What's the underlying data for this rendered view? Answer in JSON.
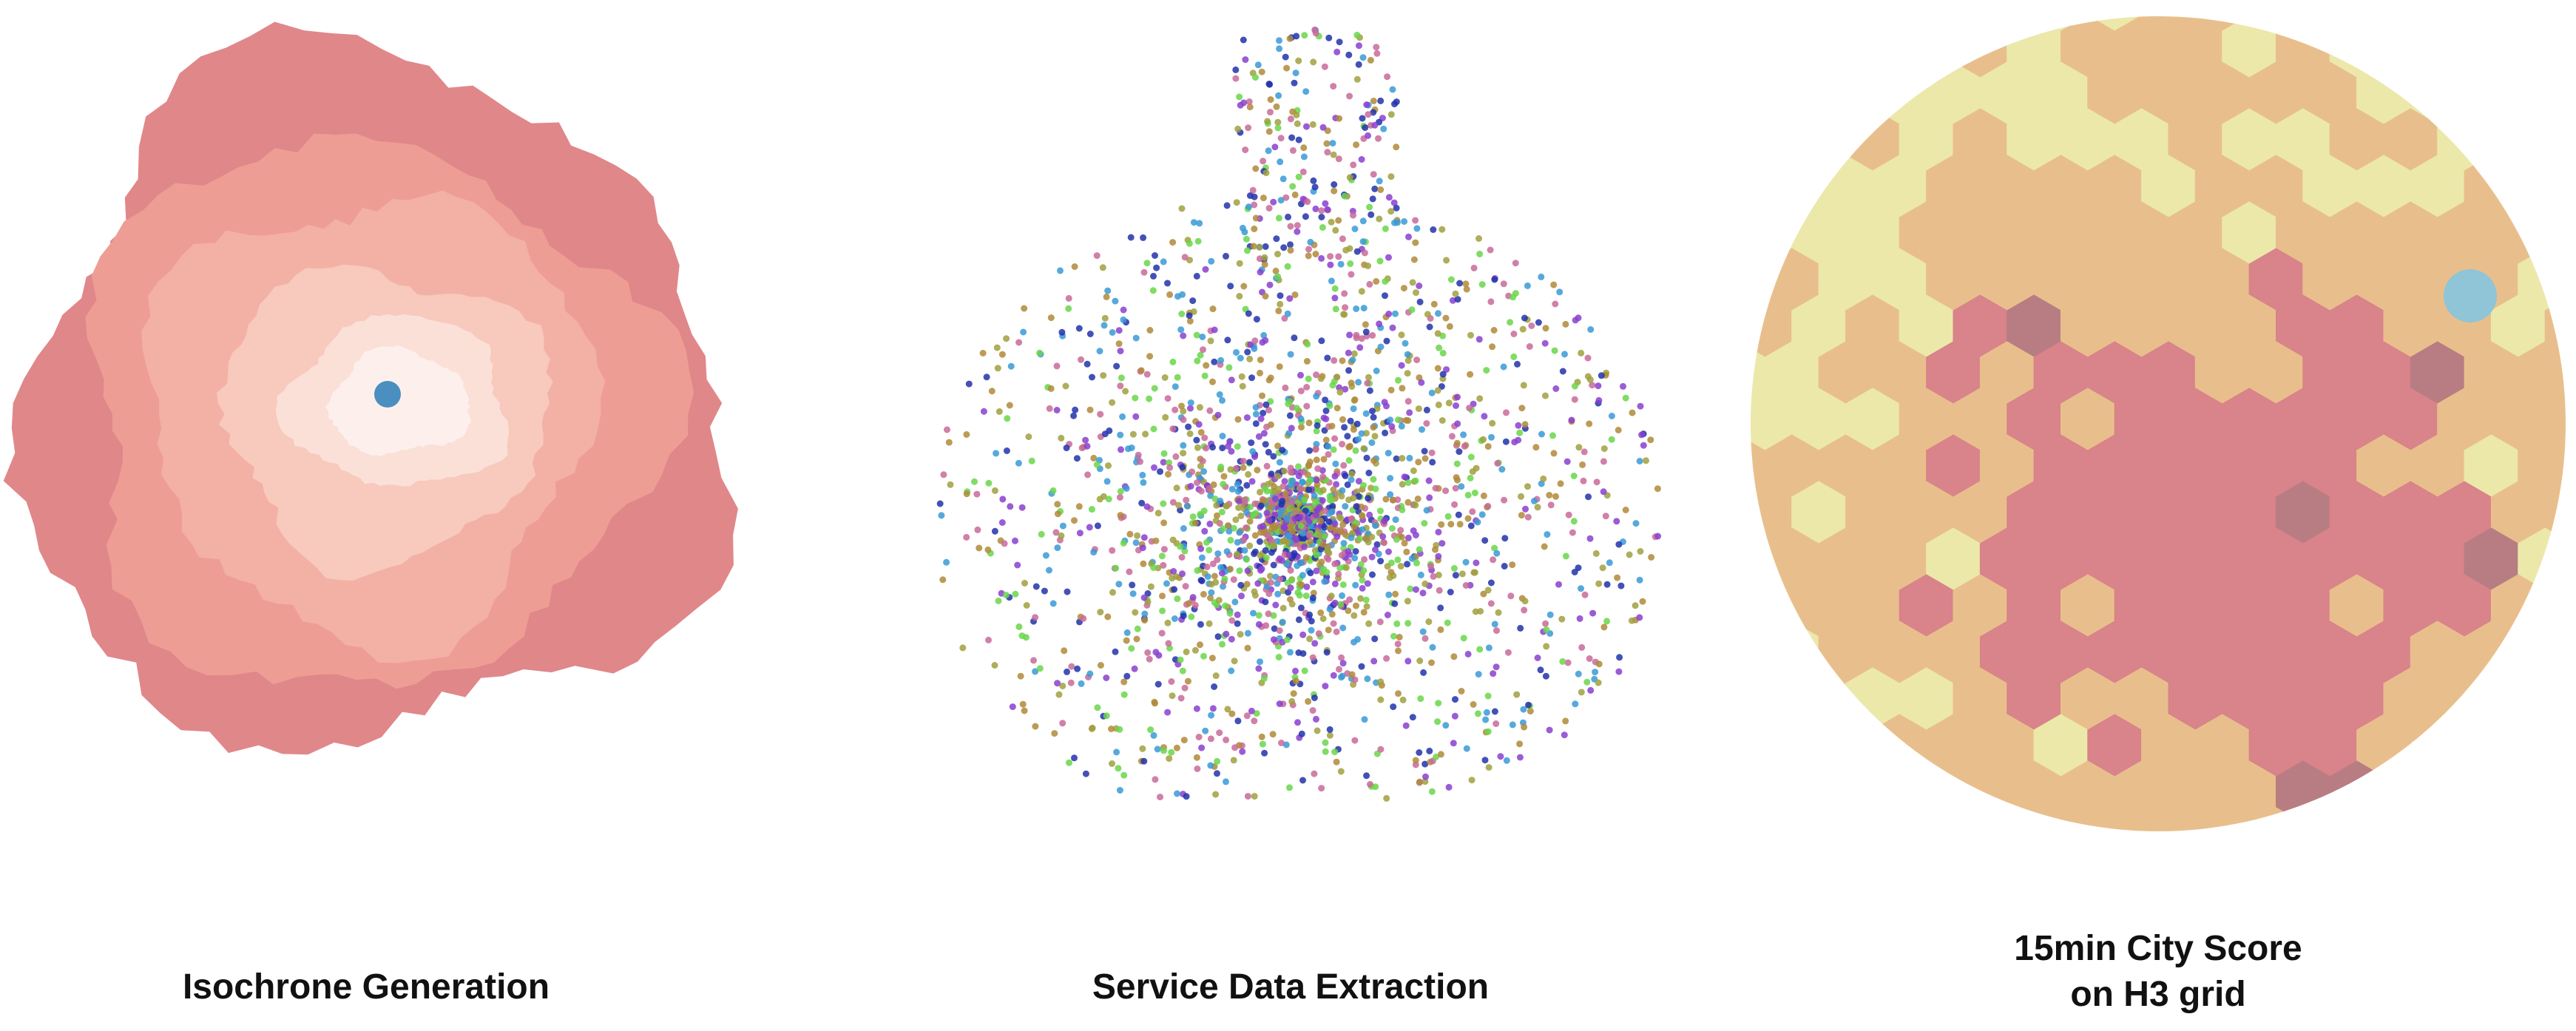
{
  "panels": [
    {
      "caption": [
        "Isochrone Generation"
      ]
    },
    {
      "caption": [
        "Service Data Extraction"
      ]
    },
    {
      "caption": [
        "15min City Score",
        "on H3 grid"
      ]
    }
  ]
}
